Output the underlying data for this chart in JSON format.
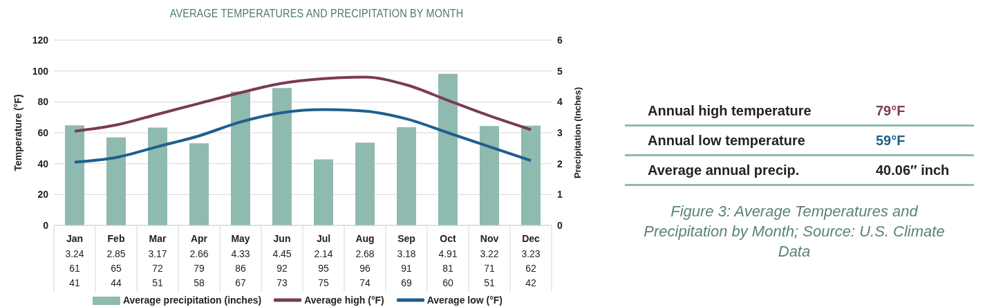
{
  "chart_data": {
    "type": "bar",
    "title": "AVERAGE TEMPERATURES AND PRECIPITATION BY MONTH",
    "ylabel": "Temperature (°F)",
    "y2label": "Precipitation (Inches)",
    "categories": [
      "Jan",
      "Feb",
      "Mar",
      "Apr",
      "May",
      "Jun",
      "Jul",
      "Aug",
      "Sep",
      "Oct",
      "Nov",
      "Dec"
    ],
    "series": [
      {
        "name": "Average precipitation (inches)",
        "axis": "y2",
        "color": "#8fbab0",
        "values": [
          3.24,
          2.85,
          3.17,
          2.66,
          4.33,
          4.45,
          2.14,
          2.68,
          3.18,
          4.91,
          3.22,
          3.23
        ]
      },
      {
        "name": "Average high (°F)",
        "type": "line",
        "color": "#7b3b52",
        "values": [
          61,
          65,
          72,
          79,
          86,
          92,
          95,
          96,
          91,
          81,
          71,
          62
        ]
      },
      {
        "name": "Average low (°F)",
        "type": "line",
        "color": "#1f5f8b",
        "values": [
          41,
          44,
          51,
          58,
          67,
          73,
          75,
          74,
          69,
          60,
          51,
          42
        ]
      }
    ],
    "ylim": [
      0,
      120
    ],
    "yticks": [
      0,
      20,
      40,
      60,
      80,
      100,
      120
    ],
    "y2lim": [
      0,
      6
    ],
    "y2ticks": [
      0,
      1,
      2,
      3,
      4,
      5,
      6
    ],
    "grid": "y",
    "legend": "bottom",
    "marker": "none",
    "data_labels": true,
    "annotations": [
      "Annual high temperature",
      "79°F",
      "Annual low temperature",
      "59°F",
      "Average annual precip.",
      "40.06″ inch",
      "Figure 3: Average Temperatures and Precipitation by Month; Source: U.S. Climate Data"
    ]
  }
}
